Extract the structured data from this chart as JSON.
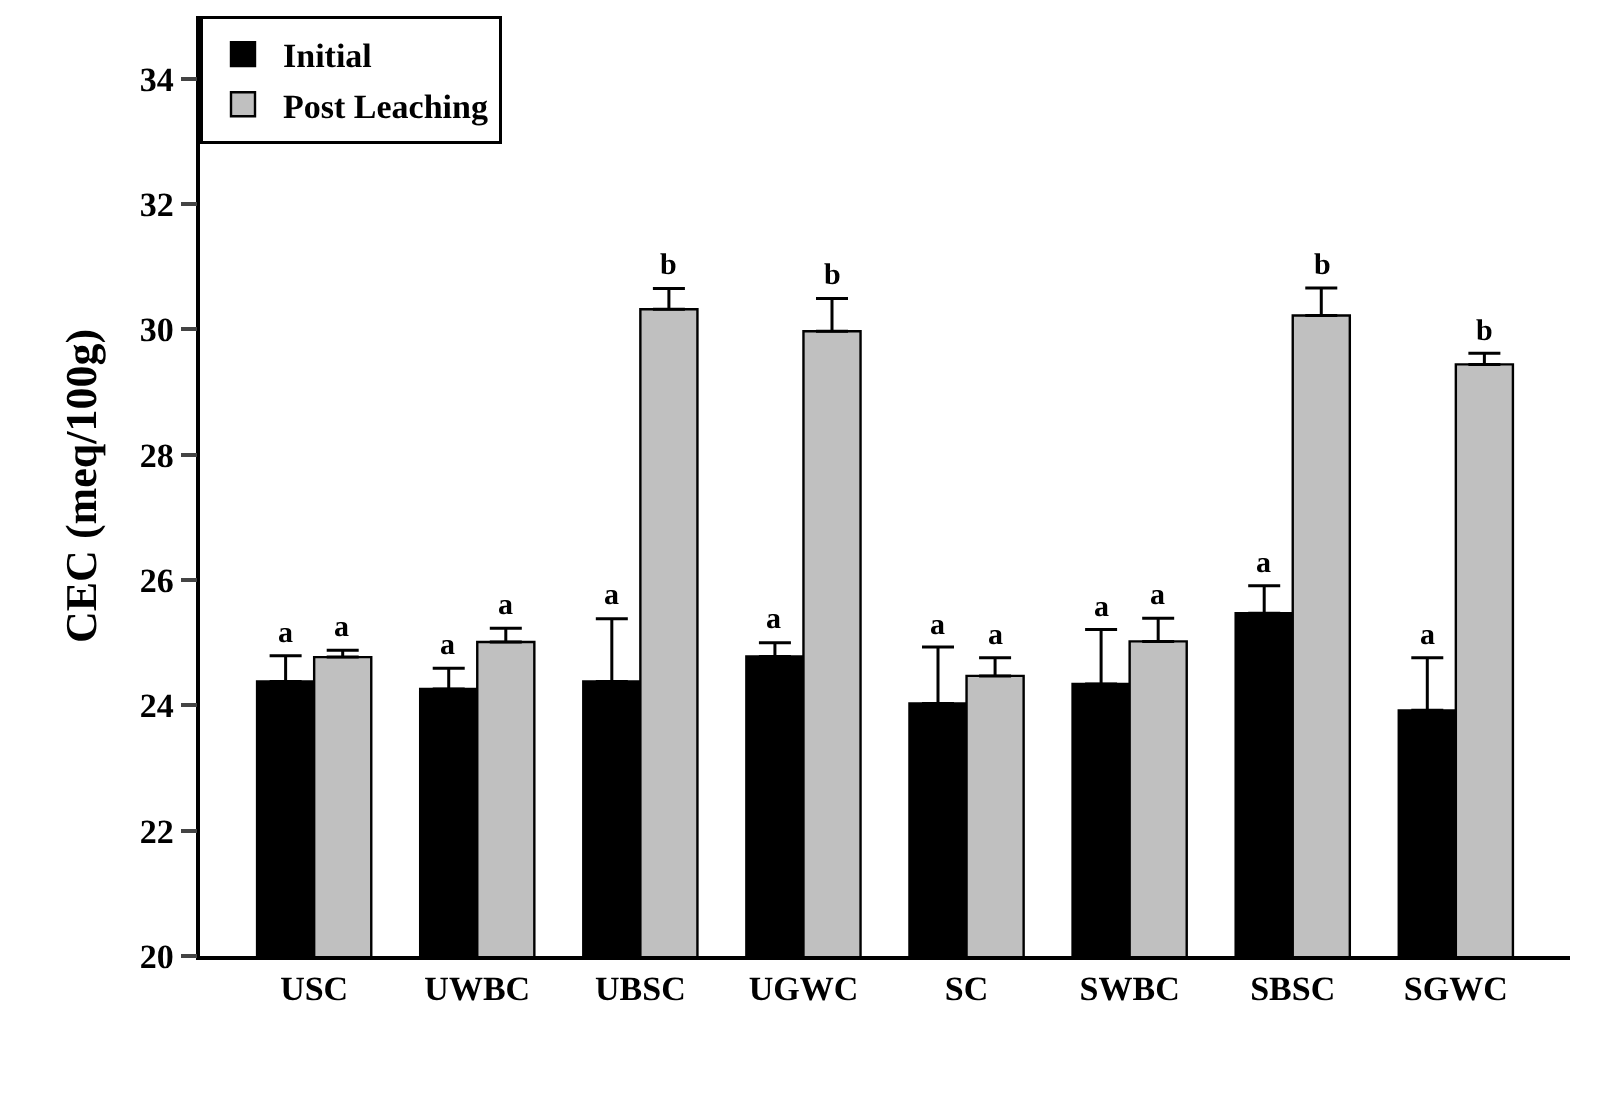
{
  "chart_data": {
    "type": "bar",
    "ylabel": "CEC (meq/100g)",
    "categories": [
      "USC",
      "UWBC",
      "UBSC",
      "UGWC",
      "SC",
      "SWBC",
      "SBSC",
      "SGWC"
    ],
    "series": [
      {
        "name": "Initial",
        "color": "#000000",
        "values": [
          24.38,
          24.26,
          24.38,
          24.78,
          24.03,
          24.34,
          25.47,
          23.92
        ],
        "errors": [
          0.41,
          0.33,
          1.0,
          0.22,
          0.9,
          0.87,
          0.44,
          0.84
        ],
        "value_labels": [
          "a",
          "a",
          "a",
          "a",
          "a",
          "a",
          "a",
          "a"
        ]
      },
      {
        "name": "Post Leaching",
        "color": "#c0c0c0",
        "values": [
          24.77,
          25.01,
          30.32,
          29.97,
          24.47,
          25.02,
          30.22,
          29.44
        ],
        "errors": [
          0.11,
          0.22,
          0.33,
          0.52,
          0.29,
          0.37,
          0.44,
          0.18
        ],
        "value_labels": [
          "a",
          "a",
          "b",
          "b",
          "a",
          "a",
          "b",
          "b"
        ]
      }
    ],
    "ylim": [
      20,
      35
    ],
    "yticks": [
      20,
      22,
      24,
      26,
      28,
      30,
      32,
      34
    ],
    "legend": "top left"
  }
}
